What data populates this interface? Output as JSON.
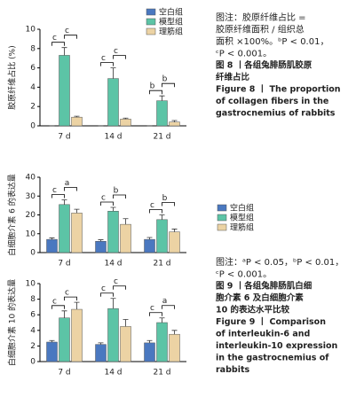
{
  "chart_data": [
    {
      "type": "bar",
      "y_label": "胶原纤维占比 (%)",
      "categories": [
        "7 d",
        "14 d",
        "21 d"
      ],
      "series": [
        {
          "name": "空白组",
          "color": "#4a78c0",
          "values": [
            0,
            0,
            0
          ],
          "errors": [
            0,
            0,
            0
          ]
        },
        {
          "name": "模型组",
          "color": "#5cc4a6",
          "values": [
            7.3,
            4.9,
            2.6
          ],
          "errors": [
            0.8,
            1.1,
            0.5
          ]
        },
        {
          "name": "理筋组",
          "color": "#ecd3a4",
          "values": [
            0.9,
            0.7,
            0.4
          ],
          "errors": [
            0.1,
            0.1,
            0.15
          ]
        }
      ],
      "significance": [
        [
          "c",
          "c"
        ],
        [
          "c",
          "c"
        ],
        [
          "b",
          "b"
        ]
      ],
      "ylim": [
        0,
        10
      ],
      "yticks": [
        0,
        2,
        4,
        6,
        8,
        10
      ],
      "legend": "upper right"
    },
    {
      "type": "bar",
      "y_label": "白细胞介素 6 的表达量",
      "categories": [
        "7 d",
        "14 d",
        "21 d"
      ],
      "series": [
        {
          "name": "空白组",
          "color": "#4a78c0",
          "values": [
            7,
            6,
            7
          ],
          "errors": [
            0.8,
            0.8,
            1
          ]
        },
        {
          "name": "模型组",
          "color": "#5cc4a6",
          "values": [
            25.5,
            22,
            17.5
          ],
          "errors": [
            2.5,
            2,
            2.5
          ]
        },
        {
          "name": "理筋组",
          "color": "#ecd3a4",
          "values": [
            21,
            15,
            11
          ],
          "errors": [
            2,
            3,
            1.5
          ]
        }
      ],
      "significance": [
        [
          "c",
          "a"
        ],
        [
          "c",
          "b"
        ],
        [
          "c",
          "b"
        ]
      ],
      "ylim": [
        0,
        40
      ],
      "yticks": [
        0,
        10,
        20,
        30,
        40
      ],
      "legend": "right"
    },
    {
      "type": "bar",
      "y_label": "白细胞介素 10 的表达量",
      "categories": [
        "7 d",
        "14 d",
        "21 d"
      ],
      "series": [
        {
          "name": "空白组",
          "color": "#4a78c0",
          "values": [
            2.5,
            2.2,
            2.4
          ],
          "errors": [
            0.2,
            0.2,
            0.3
          ]
        },
        {
          "name": "模型组",
          "color": "#5cc4a6",
          "values": [
            5.6,
            6.8,
            5.0
          ],
          "errors": [
            0.9,
            1.3,
            0.6
          ]
        },
        {
          "name": "理筋组",
          "color": "#ecd3a4",
          "values": [
            6.7,
            4.5,
            3.5
          ],
          "errors": [
            0.9,
            0.9,
            0.5
          ]
        }
      ],
      "significance": [
        [
          "c",
          "c"
        ],
        [
          "c",
          "c"
        ],
        [
          "c",
          "a"
        ]
      ],
      "ylim": [
        0,
        10
      ],
      "yticks": [
        0,
        2,
        4,
        6,
        8,
        10
      ]
    }
  ],
  "figure8_caption": {
    "note": [
      "图注：胶原纤维占比 =",
      "胶原纤维面积 / 组织总",
      "面积 ×100%。ᵇP < 0.01，",
      "ᶜP < 0.001。"
    ],
    "title_cn": [
      "图 8 丨各组兔腓肠肌胶原",
      "纤维占比"
    ],
    "title_en": [
      "Figure 8 丨 The proportion",
      "of collagen fibers in the",
      "gastrocnemius of rabbits"
    ]
  },
  "figure9_caption": {
    "note": [
      "图注：ᵃP < 0.05，ᵇP < 0.01，",
      "ᶜP < 0.001。"
    ],
    "title_cn": [
      "图 9 丨各组兔腓肠肌白细",
      "胞介素 6 及白细胞介素",
      "10 的表达水平比较"
    ],
    "title_en": [
      "Figure 9 丨 Comparison",
      "of interleukin-6 and",
      "interleukin-10 expression",
      "in the gastrocnemius of",
      "rabbits"
    ]
  }
}
